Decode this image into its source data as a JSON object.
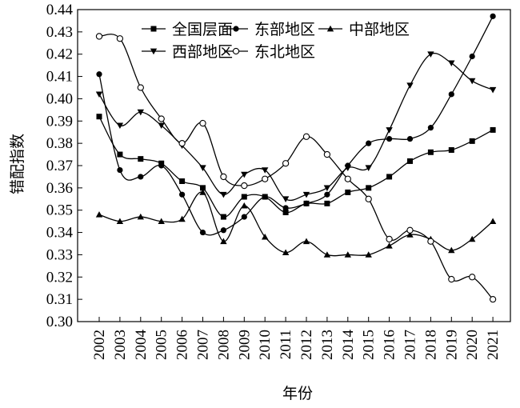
{
  "chart_data": {
    "type": "line",
    "title": "",
    "xlabel": "年份",
    "ylabel": "错配指数",
    "x": [
      "2002",
      "2003",
      "2004",
      "2005",
      "2006",
      "2007",
      "2008",
      "2009",
      "2010",
      "2011",
      "2012",
      "2013",
      "2014",
      "2015",
      "2016",
      "2017",
      "2018",
      "2019",
      "2020",
      "2021"
    ],
    "ylim": [
      0.3,
      0.44
    ],
    "yticks": [
      "0.30",
      "0.31",
      "0.32",
      "0.33",
      "0.34",
      "0.35",
      "0.36",
      "0.37",
      "0.38",
      "0.39",
      "0.40",
      "0.41",
      "0.42",
      "0.43",
      "0.44"
    ],
    "grid": false,
    "legend": "top",
    "series": [
      {
        "name": "全国层面",
        "marker": "square",
        "values": [
          0.392,
          0.375,
          0.373,
          0.371,
          0.363,
          0.36,
          0.347,
          0.356,
          0.356,
          0.349,
          0.353,
          0.353,
          0.358,
          0.36,
          0.365,
          0.372,
          0.376,
          0.377,
          0.381,
          0.386
        ]
      },
      {
        "name": "东部地区",
        "marker": "circle-filled",
        "values": [
          0.411,
          0.368,
          0.365,
          0.37,
          0.357,
          0.34,
          0.341,
          0.347,
          0.356,
          0.351,
          0.353,
          0.357,
          0.37,
          0.38,
          0.382,
          0.382,
          0.387,
          0.402,
          0.419,
          0.437
        ]
      },
      {
        "name": "中部地区",
        "marker": "triangle-up",
        "values": [
          0.348,
          0.345,
          0.347,
          0.345,
          0.346,
          0.358,
          0.336,
          0.352,
          0.338,
          0.331,
          0.336,
          0.33,
          0.33,
          0.33,
          0.334,
          0.339,
          0.337,
          0.332,
          0.337,
          0.345
        ]
      },
      {
        "name": "西部地区",
        "marker": "triangle-down",
        "values": [
          0.402,
          0.388,
          0.394,
          0.388,
          0.379,
          0.369,
          0.357,
          0.366,
          0.368,
          0.355,
          0.357,
          0.36,
          0.369,
          0.369,
          0.386,
          0.406,
          0.42,
          0.416,
          0.408,
          0.404
        ]
      },
      {
        "name": "东北地区",
        "marker": "circle-open",
        "values": [
          0.428,
          0.427,
          0.405,
          0.391,
          0.38,
          0.389,
          0.365,
          0.361,
          0.364,
          0.371,
          0.383,
          0.375,
          0.364,
          0.355,
          0.337,
          0.341,
          0.336,
          0.319,
          0.32,
          0.31
        ]
      }
    ]
  }
}
